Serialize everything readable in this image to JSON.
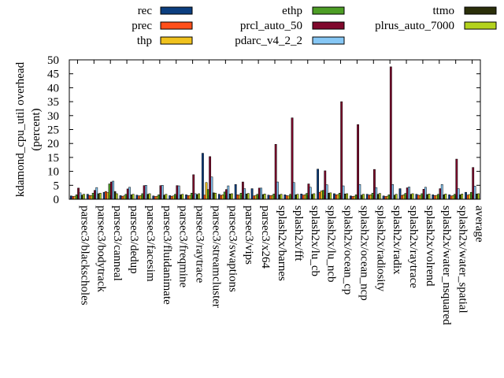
{
  "chart_data": {
    "type": "bar",
    "ylabel": "kdamond_cpu_util overhead (percent)",
    "ylabel_lines": [
      "kdamond_cpu_util overhead",
      "(percent)"
    ],
    "xlabel": "",
    "ylim": [
      0,
      50
    ],
    "yticks": [
      0,
      5,
      10,
      15,
      20,
      25,
      30,
      35,
      40,
      45,
      50
    ],
    "legend_position": "top",
    "categories": [
      "parsec3/blackscholes",
      "parsec3/bodytrack",
      "parsec3/canneal",
      "parsec3/dedup",
      "parsec3/facesim",
      "parsec3/fluidanimate",
      "parsec3/freqmine",
      "parsec3/raytrace",
      "parsec3/streamcluster",
      "parsec3/swaptions",
      "parsec3/vips",
      "parsec3/x264",
      "splash2x/barnes",
      "splash2x/fft",
      "splash2x/lu_cb",
      "splash2x/lu_ncb",
      "splash2x/ocean_cp",
      "splash2x/ocean_ncp",
      "splash2x/radiosity",
      "splash2x/radix",
      "splash2x/raytrace",
      "splash2x/volrend",
      "splash2x/water_nsquared",
      "splash2x/water_spatial",
      "average"
    ],
    "series": [
      {
        "name": "rec",
        "color": "#0c3f80",
        "values": [
          1.2,
          1.8,
          2.5,
          1.3,
          1.5,
          1.2,
          1.3,
          1.6,
          16.5,
          1.8,
          5.3,
          3.8,
          1.5,
          1.6,
          1.9,
          10.8,
          2.0,
          1.2,
          1.8,
          1.2,
          3.8,
          1.8,
          1.6,
          1.6,
          2.5
        ]
      },
      {
        "name": "prec",
        "color": "#ff4f1a",
        "values": [
          1.0,
          1.4,
          2.8,
          1.1,
          1.2,
          1.0,
          1.1,
          1.3,
          1.5,
          1.4,
          1.6,
          1.2,
          1.3,
          1.3,
          1.5,
          2.5,
          1.6,
          1.0,
          1.5,
          1.0,
          1.4,
          1.5,
          1.3,
          1.2,
          1.5
        ]
      },
      {
        "name": "thp",
        "color": "#f0c21e",
        "values": [
          1.1,
          1.3,
          2.4,
          1.2,
          1.3,
          1.1,
          1.2,
          1.4,
          6.0,
          1.6,
          1.5,
          1.4,
          1.4,
          1.2,
          1.6,
          3.0,
          1.7,
          1.1,
          1.6,
          1.1,
          1.6,
          1.4,
          1.4,
          1.3,
          1.7
        ]
      },
      {
        "name": "ethp",
        "color": "#4d9e25",
        "values": [
          1.6,
          2.2,
          5.5,
          1.8,
          2.0,
          1.6,
          1.8,
          2.2,
          3.5,
          2.6,
          2.2,
          1.8,
          1.9,
          1.8,
          2.1,
          3.2,
          2.2,
          1.6,
          2.2,
          1.6,
          2.1,
          2.0,
          1.8,
          1.8,
          2.5
        ]
      },
      {
        "name": "prcl_auto_50",
        "color": "#80082c",
        "values": [
          4.0,
          3.2,
          6.2,
          3.7,
          4.9,
          4.9,
          4.9,
          8.8,
          15.3,
          3.5,
          6.2,
          4.0,
          19.7,
          29.2,
          5.5,
          10.2,
          35.0,
          26.8,
          10.7,
          47.5,
          4.1,
          3.6,
          3.8,
          14.4,
          11.4
        ]
      },
      {
        "name": "pdarc_v4_2_2",
        "color": "#86c7f5",
        "values": [
          2.3,
          4.2,
          6.5,
          4.3,
          5.0,
          5.0,
          4.8,
          2.0,
          8.0,
          4.8,
          3.8,
          4.0,
          6.2,
          6.0,
          4.3,
          5.2,
          4.8,
          5.3,
          4.2,
          5.3,
          4.4,
          4.3,
          5.3,
          3.8,
          4.7
        ]
      },
      {
        "name": "ttmo",
        "color": "#2b2f0a",
        "values": [
          1.5,
          2.0,
          2.8,
          1.6,
          1.8,
          1.5,
          1.6,
          1.7,
          2.3,
          1.9,
          1.9,
          1.7,
          1.6,
          1.6,
          1.8,
          2.2,
          1.9,
          1.5,
          1.8,
          1.5,
          1.8,
          1.7,
          1.6,
          1.6,
          1.9
        ]
      },
      {
        "name": "plrus_auto_7000",
        "color": "#b3d21d",
        "values": [
          1.8,
          2.2,
          2.0,
          1.8,
          2.0,
          1.8,
          1.8,
          2.0,
          2.2,
          2.0,
          2.1,
          1.9,
          1.8,
          1.8,
          2.0,
          2.3,
          2.0,
          1.8,
          2.1,
          1.8,
          2.0,
          1.9,
          1.9,
          1.9,
          2.0
        ]
      }
    ]
  }
}
